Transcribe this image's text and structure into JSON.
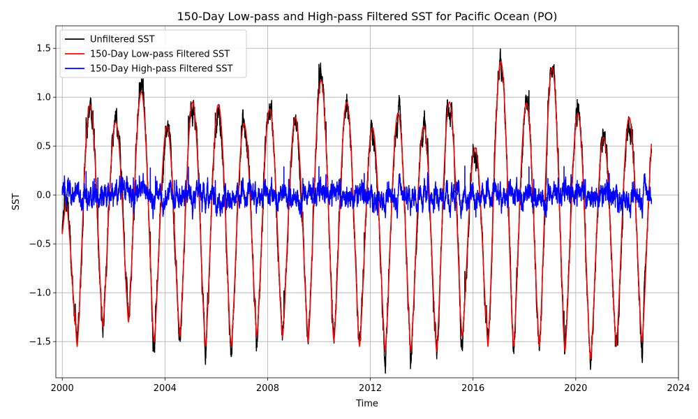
{
  "chart_data": {
    "type": "line",
    "title": "150-Day Low-pass and High-pass Filtered SST for Pacific Ocean (PO)",
    "xlabel": "Time",
    "ylabel": "SST",
    "xlim": [
      1999.75,
      2024.0
    ],
    "ylim": [
      -1.87,
      1.73
    ],
    "xticks": [
      2000,
      2004,
      2008,
      2012,
      2016,
      2020,
      2024
    ],
    "xtick_labels": [
      "2000",
      "2004",
      "2008",
      "2012",
      "2016",
      "2020",
      "2024"
    ],
    "yticks": [
      -1.5,
      -1.0,
      -0.5,
      0.0,
      0.5,
      1.0,
      1.5
    ],
    "ytick_labels": [
      "−1.5",
      "−1.0",
      "−0.5",
      "0.0",
      "0.5",
      "1.0",
      "1.5"
    ],
    "grid": true,
    "legend_position": "top-left",
    "annual_peaks": [
      {
        "year": 2000,
        "peak": 0.0,
        "trough": -1.55
      },
      {
        "year": 2001,
        "peak": 1.05,
        "trough": -1.35
      },
      {
        "year": 2002,
        "peak": 0.85,
        "trough": -1.3
      },
      {
        "year": 2003,
        "peak": 1.2,
        "trough": -1.5
      },
      {
        "year": 2004,
        "peak": 0.8,
        "trough": -1.45
      },
      {
        "year": 2005,
        "peak": 1.08,
        "trough": -1.55
      },
      {
        "year": 2006,
        "peak": 1.05,
        "trough": -1.55
      },
      {
        "year": 2007,
        "peak": 0.83,
        "trough": -1.45
      },
      {
        "year": 2008,
        "peak": 1.0,
        "trough": -1.45
      },
      {
        "year": 2009,
        "peak": 0.9,
        "trough": -1.5
      },
      {
        "year": 2010,
        "peak": 1.33,
        "trough": -1.5
      },
      {
        "year": 2011,
        "peak": 1.08,
        "trough": -1.55
      },
      {
        "year": 2012,
        "peak": 0.78,
        "trough": -1.6
      },
      {
        "year": 2013,
        "peak": 0.95,
        "trough": -1.6
      },
      {
        "year": 2014,
        "peak": 0.8,
        "trough": -1.6
      },
      {
        "year": 2015,
        "peak": 1.08,
        "trough": -1.45
      },
      {
        "year": 2016,
        "peak": 0.55,
        "trough": -1.55
      },
      {
        "year": 2017,
        "peak": 1.55,
        "trough": -1.55
      },
      {
        "year": 2018,
        "peak": 1.07,
        "trough": -1.55
      },
      {
        "year": 2019,
        "peak": 1.48,
        "trough": -1.6
      },
      {
        "year": 2020,
        "peak": 0.95,
        "trough": -1.68
      },
      {
        "year": 2021,
        "peak": 0.67,
        "trough": -1.55
      },
      {
        "year": 2022,
        "peak": 0.9,
        "trough": -1.5
      }
    ],
    "end_year": 2022.95,
    "series": [
      {
        "name": "Unfiltered SST",
        "color": "#000000",
        "kind": "unfiltered"
      },
      {
        "name": "150-Day Low-pass Filtered SST",
        "color": "#ff0000",
        "kind": "lowpass"
      },
      {
        "name": "150-Day High-pass Filtered SST",
        "color": "#0000ff",
        "kind": "highpass"
      }
    ]
  }
}
